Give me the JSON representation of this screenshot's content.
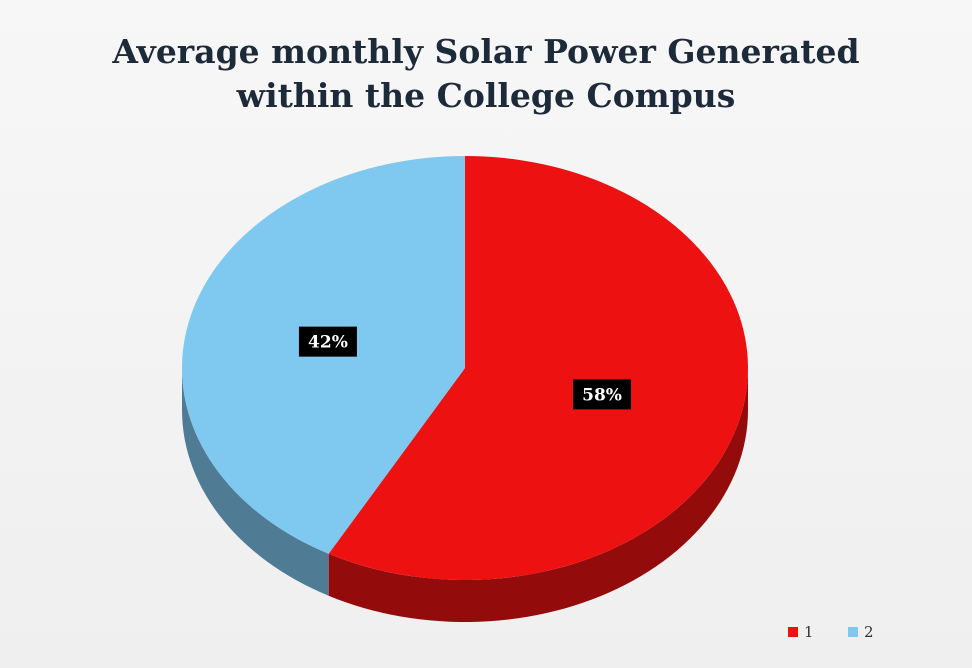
{
  "chart_data": {
    "type": "pie",
    "title": "Average monthly Solar Power Generated within the College Compus",
    "categories": [
      "1",
      "2"
    ],
    "values": [
      58,
      42
    ],
    "value_labels": [
      "58%",
      "42%"
    ],
    "colors": [
      "#ee1111",
      "#7fc8ef"
    ],
    "legend": "bottom-right"
  }
}
